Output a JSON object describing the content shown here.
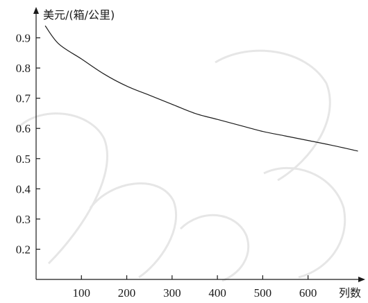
{
  "chart_data": {
    "type": "line",
    "title": "",
    "xlabel": "列数",
    "ylabel": "美元/(箱/公里)",
    "xlim": [
      0,
      720
    ],
    "ylim": [
      0.1,
      1.0
    ],
    "x_ticks": [
      100,
      200,
      300,
      400,
      500,
      600
    ],
    "y_ticks": [
      0.2,
      0.3,
      0.4,
      0.5,
      0.6,
      0.7,
      0.8,
      0.9
    ],
    "x_tick_labels": [
      "100",
      "200",
      "300",
      "400",
      "500",
      "600"
    ],
    "y_tick_labels": [
      "0.2",
      "0.3",
      "0.4",
      "0.5",
      "0.6",
      "0.7",
      "0.8",
      "0.9"
    ],
    "grid": false,
    "legend": "none",
    "series": [
      {
        "x": [
          20,
          50,
          100,
          150,
          200,
          250,
          300,
          350,
          400,
          450,
          500,
          550,
          600,
          650,
          710
        ],
        "values": [
          0.94,
          0.88,
          0.83,
          0.78,
          0.74,
          0.71,
          0.68,
          0.65,
          0.63,
          0.61,
          0.59,
          0.575,
          0.56,
          0.545,
          0.525
        ]
      }
    ]
  }
}
